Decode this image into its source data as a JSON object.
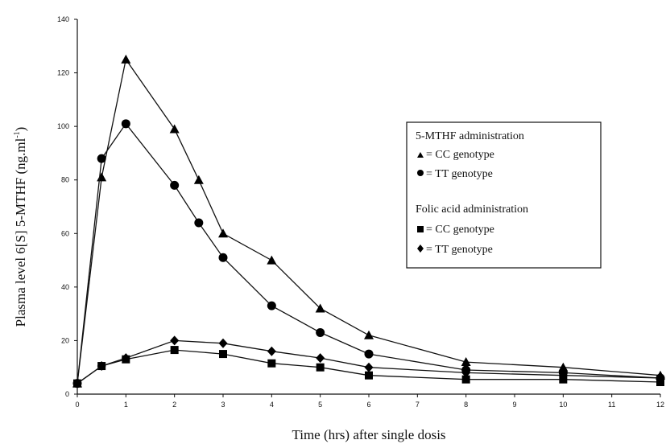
{
  "chart_data": {
    "type": "line",
    "title": "",
    "xlabel": "Time (hrs) after single dosis",
    "ylabel_main": "Plasma level 6[S] 5-MTHF (ng.ml",
    "ylabel_sup": "-1",
    "ylabel_close": ")",
    "xlim": [
      0,
      12
    ],
    "ylim": [
      0,
      140
    ],
    "x_ticks": [
      "0",
      "1",
      "2",
      "3",
      "4",
      "5",
      "6",
      "7",
      "8",
      "9",
      "10",
      "11",
      "12"
    ],
    "y_ticks": [
      "0",
      "20",
      "40",
      "60",
      "80",
      "100",
      "120",
      "140"
    ],
    "grid": false,
    "legend_position": "right",
    "legend": {
      "group1_title": "5-MTHF administration",
      "group1_items": [
        "= CC genotype",
        "= TT genotype"
      ],
      "group2_title": "Folic acid administration",
      "group2_items": [
        "= CC genotype",
        "= TT genotype"
      ]
    },
    "series": [
      {
        "marker": "triangle",
        "x": [
          0,
          0.5,
          1,
          2,
          2.5,
          3,
          4,
          5,
          6,
          8,
          10,
          12
        ],
        "y": [
          4,
          81,
          125,
          99,
          80,
          60,
          50,
          32,
          22,
          12,
          10,
          7
        ]
      },
      {
        "marker": "circle",
        "x": [
          0,
          0.5,
          1,
          2,
          2.5,
          3,
          4,
          5,
          6,
          8,
          10,
          12
        ],
        "y": [
          4,
          88,
          101,
          78,
          64,
          51,
          33,
          23,
          15,
          9,
          8,
          6
        ]
      },
      {
        "marker": "square",
        "x": [
          0,
          0.5,
          1,
          2,
          3,
          4,
          5,
          6,
          8,
          10,
          12
        ],
        "y": [
          4,
          10.5,
          13,
          16.5,
          15,
          11.5,
          10,
          7,
          5.5,
          5.5,
          4.5
        ]
      },
      {
        "marker": "diamond",
        "x": [
          0,
          0.5,
          1,
          2,
          3,
          4,
          5,
          6,
          8,
          10,
          12
        ],
        "y": [
          4,
          10.5,
          13.5,
          20,
          19,
          16,
          13.5,
          10,
          8,
          7,
          6
        ]
      }
    ]
  }
}
